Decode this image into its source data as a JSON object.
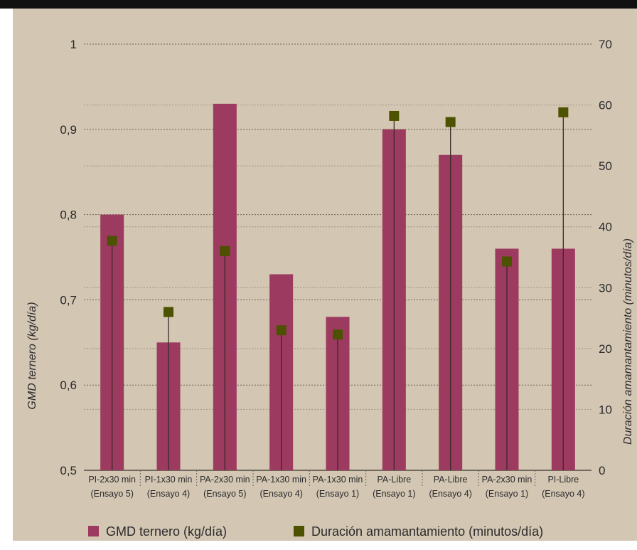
{
  "chart_data": {
    "type": "bar",
    "categories": [
      [
        "PI-2x30 min",
        "(Ensayo 5)"
      ],
      [
        "PI-1x30 min",
        "(Ensayo 4)"
      ],
      [
        "PA-2x30 min",
        "(Ensayo 5)"
      ],
      [
        "PA-1x30 min",
        "(Ensayo 4)"
      ],
      [
        "PA-1x30 min",
        "(Ensayo 1)"
      ],
      [
        "PA-Libre",
        "(Ensayo 1)"
      ],
      [
        "PA-Libre",
        "(Ensayo 4)"
      ],
      [
        "PA-2x30 min",
        "(Ensayo 1)"
      ],
      [
        "PI-Libre",
        "(Ensayo 4)"
      ]
    ],
    "series": [
      {
        "name": "GMD ternero (kg/día)",
        "type": "bar",
        "axis": "left",
        "color": "#9c3a5f",
        "values": [
          0.8,
          0.65,
          0.93,
          0.73,
          0.68,
          0.9,
          0.87,
          0.76,
          0.76
        ]
      },
      {
        "name": "Duración amamantamiento (minutos/día)",
        "type": "marker",
        "axis": "right",
        "color": "#4d5200",
        "values": [
          37.7,
          26.0,
          36.0,
          23.0,
          22.3,
          58.2,
          57.2,
          34.3,
          58.8
        ]
      }
    ],
    "ylabel_left": "GMD ternero (kg/día)",
    "ylabel_right": "Duración amamantamiento (minutos/día)",
    "ylim_left": [
      0.5,
      1
    ],
    "ylim_right": [
      0,
      70
    ],
    "yticks_left": [
      "0,5",
      "0,6",
      "0,7",
      "0,8",
      "0,9",
      "1"
    ],
    "yticks_right": [
      "0",
      "10",
      "20",
      "30",
      "40",
      "50",
      "60",
      "70"
    ],
    "grid": true,
    "legend_position": "bottom"
  },
  "colors": {
    "background": "#d3c6b3",
    "bar": "#9c3a5f",
    "marker": "#4d5200",
    "text": "#2b2b2b",
    "grid": "#6e6557"
  }
}
